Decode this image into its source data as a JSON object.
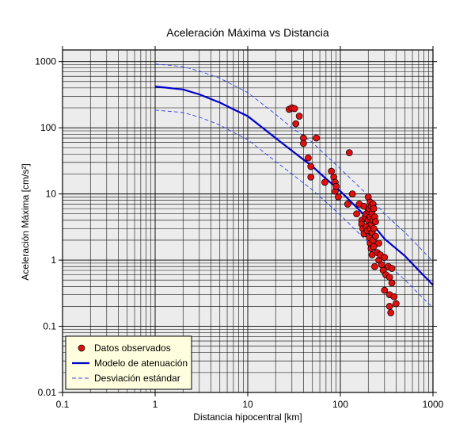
{
  "chart_data": {
    "type": "scatter",
    "title": "Aceleración Máxima vs Distancia",
    "xlabel": "Distancia hipocentral [km]",
    "ylabel": "Aceleración Máxima [cm/s²]",
    "xscale": "log",
    "yscale": "log",
    "xlim": [
      0.1,
      1000
    ],
    "ylim": [
      0.01,
      1500
    ],
    "grid": true,
    "xticks": [
      {
        "value": 0.1,
        "label": "0.1"
      },
      {
        "value": 1,
        "label": "1"
      },
      {
        "value": 10,
        "label": "10"
      },
      {
        "value": 100,
        "label": "100"
      },
      {
        "value": 1000,
        "label": "1000"
      }
    ],
    "yticks": [
      {
        "value": 0.01,
        "label": "0.01"
      },
      {
        "value": 0.1,
        "label": "0.1"
      },
      {
        "value": 1,
        "label": "1"
      },
      {
        "value": 10,
        "label": "10"
      },
      {
        "value": 100,
        "label": "100"
      },
      {
        "value": 1000,
        "label": "1000"
      }
    ],
    "legend": {
      "position": "bottom-left",
      "entries": [
        {
          "label": "Datos observados",
          "kind": "marker",
          "color": "#e01010"
        },
        {
          "label": "Modelo de atenuación",
          "kind": "line",
          "color": "#0000cc"
        },
        {
          "label": "Desviación estándar",
          "kind": "dashed",
          "color": "#3344ee"
        }
      ]
    },
    "colors": {
      "plot_background": "#ececec",
      "grid": "#000000",
      "marker_fill": "#e01010",
      "marker_edge": "#000000",
      "model_line": "#0000cc",
      "std_line": "#3344ee",
      "legend_background": "#ffffe0"
    },
    "series": [
      {
        "name": "Datos observados",
        "kind": "scatter",
        "points": [
          [
            28,
            190
          ],
          [
            30,
            200
          ],
          [
            32,
            195
          ],
          [
            33,
            115
          ],
          [
            36,
            150
          ],
          [
            40,
            70
          ],
          [
            40,
            58
          ],
          [
            45,
            35
          ],
          [
            48,
            26
          ],
          [
            48,
            18
          ],
          [
            55,
            70
          ],
          [
            68,
            15
          ],
          [
            80,
            22
          ],
          [
            85,
            18
          ],
          [
            88,
            15
          ],
          [
            88,
            11
          ],
          [
            90,
            13
          ],
          [
            95,
            9
          ],
          [
            120,
            7
          ],
          [
            125,
            42
          ],
          [
            135,
            10
          ],
          [
            150,
            5
          ],
          [
            160,
            7
          ],
          [
            170,
            4
          ],
          [
            170,
            3.5
          ],
          [
            175,
            3
          ],
          [
            180,
            6.5
          ],
          [
            180,
            2.5
          ],
          [
            185,
            4.5
          ],
          [
            190,
            5
          ],
          [
            190,
            3.2
          ],
          [
            195,
            2.8
          ],
          [
            200,
            9
          ],
          [
            200,
            5.5
          ],
          [
            200,
            4
          ],
          [
            205,
            6
          ],
          [
            205,
            2.2
          ],
          [
            210,
            7.5
          ],
          [
            210,
            4.5
          ],
          [
            210,
            3
          ],
          [
            210,
            1.8
          ],
          [
            215,
            6.5
          ],
          [
            215,
            3.5
          ],
          [
            215,
            1.5
          ],
          [
            220,
            5
          ],
          [
            220,
            2.6
          ],
          [
            220,
            1.2
          ],
          [
            225,
            7
          ],
          [
            225,
            4
          ],
          [
            225,
            2
          ],
          [
            230,
            6
          ],
          [
            230,
            3
          ],
          [
            230,
            1.6
          ],
          [
            235,
            4.5
          ],
          [
            235,
            0.8
          ],
          [
            240,
            3.8
          ],
          [
            240,
            2.3
          ],
          [
            250,
            1.3
          ],
          [
            260,
            1.8
          ],
          [
            260,
            1
          ],
          [
            270,
            1.2
          ],
          [
            280,
            0.85
          ],
          [
            290,
            0.7
          ],
          [
            300,
            1.1
          ],
          [
            300,
            0.35
          ],
          [
            310,
            0.6
          ],
          [
            330,
            0.8
          ],
          [
            340,
            0.55
          ],
          [
            340,
            0.3
          ],
          [
            340,
            0.2
          ],
          [
            350,
            0.16
          ],
          [
            360,
            0.75
          ],
          [
            360,
            0.45
          ],
          [
            380,
            0.28
          ],
          [
            400,
            0.22
          ]
        ]
      },
      {
        "name": "Modelo de atenuación",
        "kind": "line",
        "points": [
          [
            1,
            420
          ],
          [
            2,
            380
          ],
          [
            3,
            320
          ],
          [
            5,
            240
          ],
          [
            7,
            190
          ],
          [
            10,
            150
          ],
          [
            20,
            70
          ],
          [
            30,
            45
          ],
          [
            50,
            26
          ],
          [
            70,
            17
          ],
          [
            100,
            11
          ],
          [
            200,
            4.2
          ],
          [
            300,
            2.1
          ],
          [
            500,
            1.15
          ],
          [
            700,
            0.7
          ],
          [
            1000,
            0.42
          ]
        ]
      },
      {
        "name": "Desviación estándar (superior)",
        "kind": "dashed",
        "points": [
          [
            1,
            920
          ],
          [
            2,
            840
          ],
          [
            3,
            720
          ],
          [
            5,
            560
          ],
          [
            7,
            440
          ],
          [
            10,
            340
          ],
          [
            20,
            160
          ],
          [
            30,
            100
          ],
          [
            50,
            60
          ],
          [
            70,
            38
          ],
          [
            100,
            24
          ],
          [
            200,
            9.5
          ],
          [
            300,
            5
          ],
          [
            500,
            2.6
          ],
          [
            700,
            1.6
          ],
          [
            1000,
            0.95
          ]
        ]
      },
      {
        "name": "Desviación estándar (inferior)",
        "kind": "dashed",
        "points": [
          [
            1,
            185
          ],
          [
            2,
            170
          ],
          [
            3,
            145
          ],
          [
            5,
            110
          ],
          [
            7,
            85
          ],
          [
            10,
            66
          ],
          [
            20,
            31
          ],
          [
            30,
            20
          ],
          [
            50,
            11.5
          ],
          [
            70,
            7.5
          ],
          [
            100,
            4.8
          ],
          [
            200,
            1.85
          ],
          [
            300,
            0.95
          ],
          [
            500,
            0.5
          ],
          [
            700,
            0.31
          ],
          [
            1000,
            0.19
          ]
        ]
      }
    ]
  }
}
